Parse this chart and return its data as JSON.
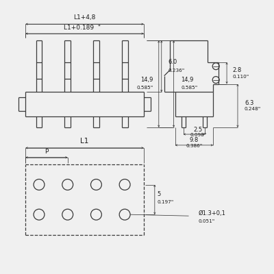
{
  "bg_color": "#f0f0f0",
  "line_color": "#3a3a3a",
  "dim_color": "#3a3a3a",
  "text_color": "#1a1a1a",
  "fig_size": [
    4.0,
    4.0
  ],
  "dpi": 100,
  "dim_labels": {
    "L1_48": "L1+4,8",
    "L1_189": "L1+0.189  \"",
    "6_0": "6.0",
    "0236": "0.236\"",
    "14_9": "14,9",
    "0585": "0.585\"",
    "2_8": "2.8",
    "0110": "0.110\"",
    "6_3": "6.3",
    "0248": "0.248\"",
    "2_5": "2.5",
    "0098": "0.098\"",
    "9_8": "9.8",
    "0386": "0.386\"",
    "L1": "L1",
    "P": "P",
    "5": "5",
    "0197": "0.197\"",
    "dia": "Ø1.3+0,1",
    "0051": "0.051\""
  }
}
